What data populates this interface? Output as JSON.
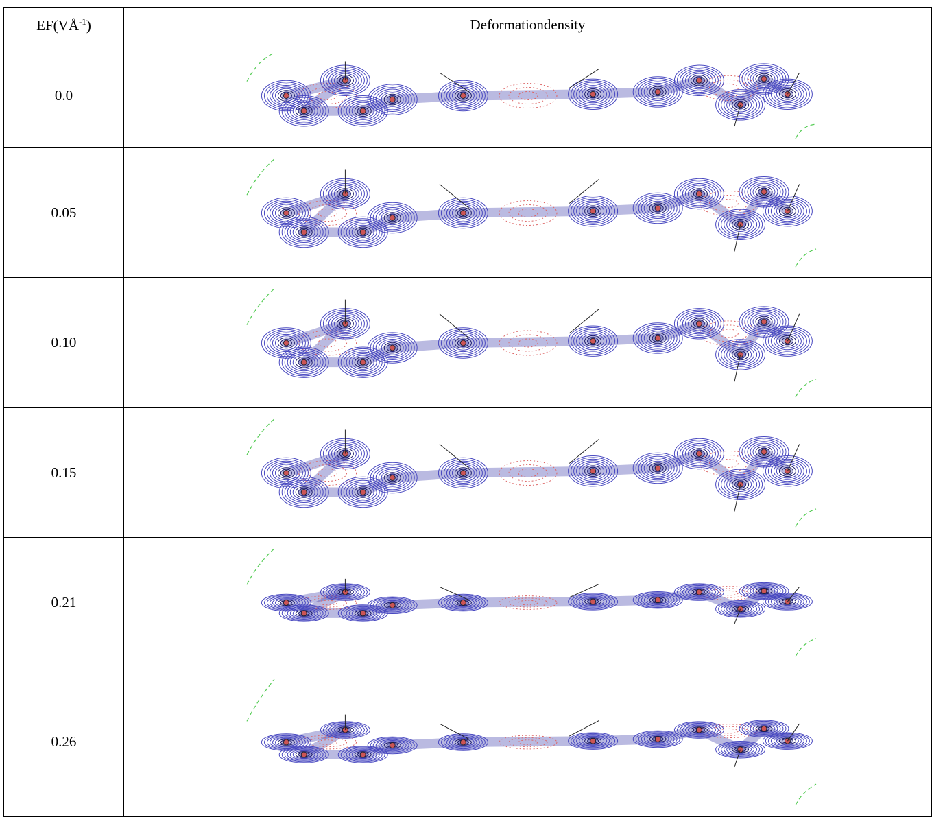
{
  "header": {
    "ef_text": "EF(VÅ",
    "ef_sup": "-1",
    "ef_close": ")",
    "density": "Deformationdensity"
  },
  "rows": [
    "0.0",
    "0.05",
    "0.10",
    "0.15",
    "0.21",
    "0.26"
  ]
}
